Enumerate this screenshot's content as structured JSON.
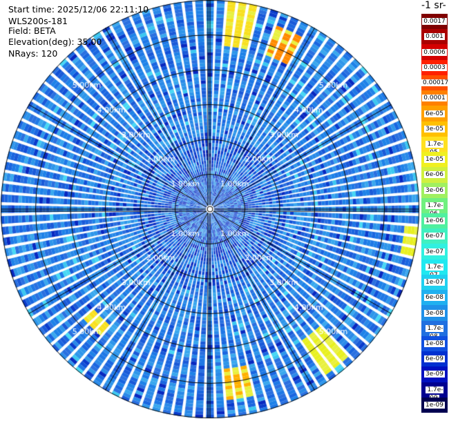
{
  "header": {
    "start_time": "Start time: 2025/12/06 22:11:10",
    "instrument": "WLS200s-181",
    "field": "Field: BETA",
    "elevation": "Elevation(deg): 35.00",
    "nrays": "NRays: 120"
  },
  "colorbar": {
    "title_fragment": "-1 sr-",
    "ticks": [
      "0.0017",
      "0.001",
      "0.0006",
      "0.0003",
      "0.00017",
      "0.0001",
      "6e-05",
      "3e-05",
      "1.7e-05",
      "1e-05",
      "6e-06",
      "3e-06",
      "1.7e-06",
      "1e-06",
      "6e-07",
      "3e-07",
      "1.7e-07",
      "1e-07",
      "6e-08",
      "3e-08",
      "1.7e-08",
      "1e-08",
      "6e-09",
      "3e-09",
      "1.7e-09",
      "1e-09"
    ],
    "colors": [
      "#800000",
      "#aa0000",
      "#d40000",
      "#ff2000",
      "#ff5000",
      "#ff8000",
      "#ffa000",
      "#ffc000",
      "#ffe020",
      "#f0f020",
      "#d0f040",
      "#a0f060",
      "#70f080",
      "#50f0a0",
      "#40f0c0",
      "#30f0e0",
      "#20e8f0",
      "#20d0f0",
      "#20b0f0",
      "#2090e8",
      "#2070e0",
      "#1050e0",
      "#0030d0",
      "#0010c0",
      "#000090",
      "#000050"
    ]
  },
  "chart_data": {
    "type": "heatmap",
    "projection": "polar-ppi",
    "nrays": 120,
    "elevation_deg": 35.0,
    "range_rings_km": [
      1,
      2,
      3,
      4,
      5
    ],
    "ring_labels": [
      "1.00km",
      "2.00km",
      "3.00km",
      "4.00km",
      "5.00km"
    ],
    "max_range_km": 6.0,
    "dominant_value": "~1e-08",
    "hotspots": [
      {
        "azimuth_deg": 8,
        "range_km": [
          4.7,
          6.0
        ],
        "value": "1.7e-05"
      },
      {
        "azimuth_deg": 25,
        "range_km": [
          4.7,
          5.6
        ],
        "value": "6e-05"
      },
      {
        "azimuth_deg": 172,
        "range_km": [
          4.6,
          5.4
        ],
        "value": "3e-05"
      },
      {
        "azimuth_deg": 140,
        "range_km": [
          4.6,
          5.8
        ],
        "value": "1e-05"
      },
      {
        "azimuth_deg": 225,
        "range_km": [
          4.4,
          4.8
        ],
        "value": "1.7e-05"
      },
      {
        "azimuth_deg": 100,
        "range_km": [
          5.6,
          6.0
        ],
        "value": "1e-05"
      }
    ]
  }
}
